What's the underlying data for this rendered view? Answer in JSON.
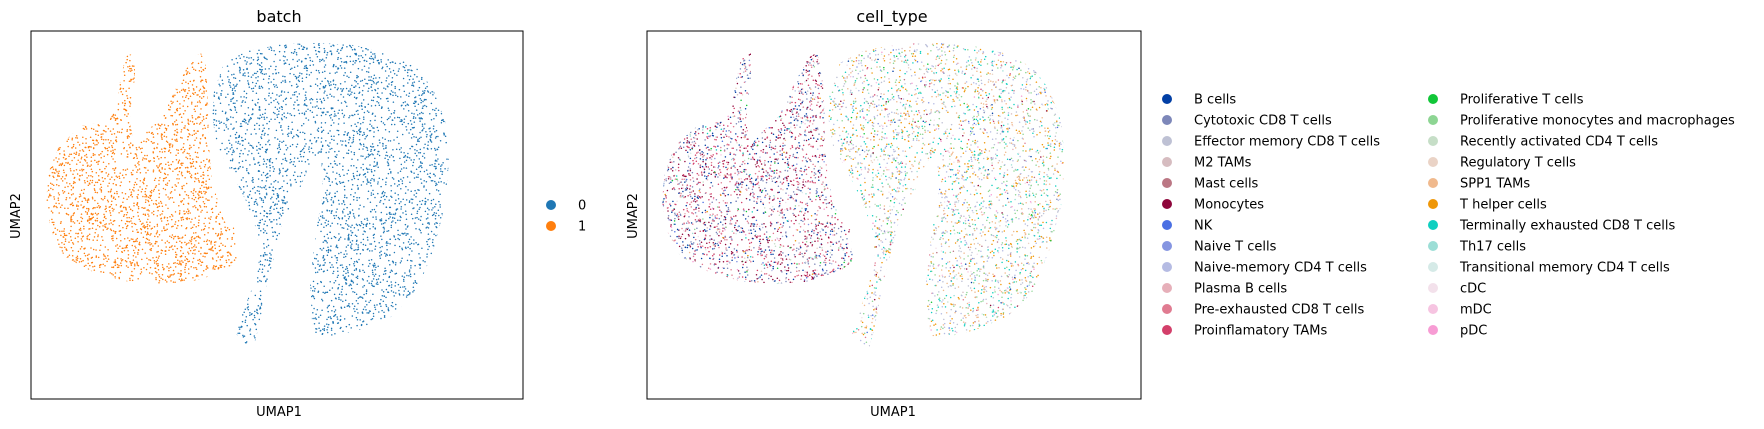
{
  "chart_data": [
    {
      "type": "scatter",
      "title": "batch",
      "xlabel": "UMAP1",
      "ylabel": "UMAP2",
      "grid": false,
      "legend_placement": "right",
      "legend": [
        {
          "label": "0",
          "color": "#1f77b4"
        },
        {
          "label": "1",
          "color": "#ff7f0e"
        }
      ],
      "clusters": [
        {
          "category": "0",
          "region": "right-blob"
        },
        {
          "category": "1",
          "region": "left-blob"
        }
      ]
    },
    {
      "type": "scatter",
      "title": "cell_type",
      "xlabel": "UMAP1",
      "ylabel": "UMAP2",
      "grid": false,
      "legend_placement": "right",
      "legend": [
        {
          "label": "B cells",
          "color": "#023fa5"
        },
        {
          "label": "Cytotoxic CD8 T cells",
          "color": "#7d87b9"
        },
        {
          "label": "Effector memory CD8 T cells",
          "color": "#bec1d4"
        },
        {
          "label": "M2 TAMs",
          "color": "#d6bcc0"
        },
        {
          "label": "Mast cells",
          "color": "#bb7784"
        },
        {
          "label": "Monocytes",
          "color": "#8e063b"
        },
        {
          "label": "NK",
          "color": "#4a6fe3"
        },
        {
          "label": "Naive T cells",
          "color": "#8595e1"
        },
        {
          "label": "Naive-memory CD4 T cells",
          "color": "#b5bbe3"
        },
        {
          "label": "Plasma B cells",
          "color": "#e6afb9"
        },
        {
          "label": "Pre-exhausted CD8 T cells",
          "color": "#e07b91"
        },
        {
          "label": "Proinflamatory TAMs",
          "color": "#d33f6a"
        },
        {
          "label": "Proliferative T cells",
          "color": "#11c638"
        },
        {
          "label": "Proliferative monocytes and macrophages",
          "color": "#8dd593"
        },
        {
          "label": "Recently activated CD4 T cells",
          "color": "#c6dec7"
        },
        {
          "label": "Regulatory T cells",
          "color": "#ead3c6"
        },
        {
          "label": "SPP1 TAMs",
          "color": "#f0b98d"
        },
        {
          "label": "T helper cells",
          "color": "#ef9708"
        },
        {
          "label": "Terminally exhausted CD8 T cells",
          "color": "#0fcfc0"
        },
        {
          "label": "Th17 cells",
          "color": "#9cded6"
        },
        {
          "label": "Transitional memory CD4 T cells",
          "color": "#d5eae7"
        },
        {
          "label": "cDC",
          "color": "#f3e1eb"
        },
        {
          "label": "mDC",
          "color": "#f6c4e1"
        },
        {
          "label": "pDC",
          "color": "#f79cd4"
        }
      ],
      "clusters": [
        {
          "region": "left-blob",
          "dominant": [
            "Monocytes",
            "Proinflamatory TAMs",
            "Cytotoxic CD8 T cells",
            "B cells",
            "Pre-exhausted CD8 T cells"
          ]
        },
        {
          "region": "right-blob",
          "dominant": [
            "Proliferative monocytes and macrophages",
            "Effector memory CD8 T cells",
            "Terminally exhausted CD8 T cells",
            "SPP1 TAMs",
            "T helper cells",
            "Naive-memory CD4 T cells"
          ]
        }
      ]
    }
  ]
}
